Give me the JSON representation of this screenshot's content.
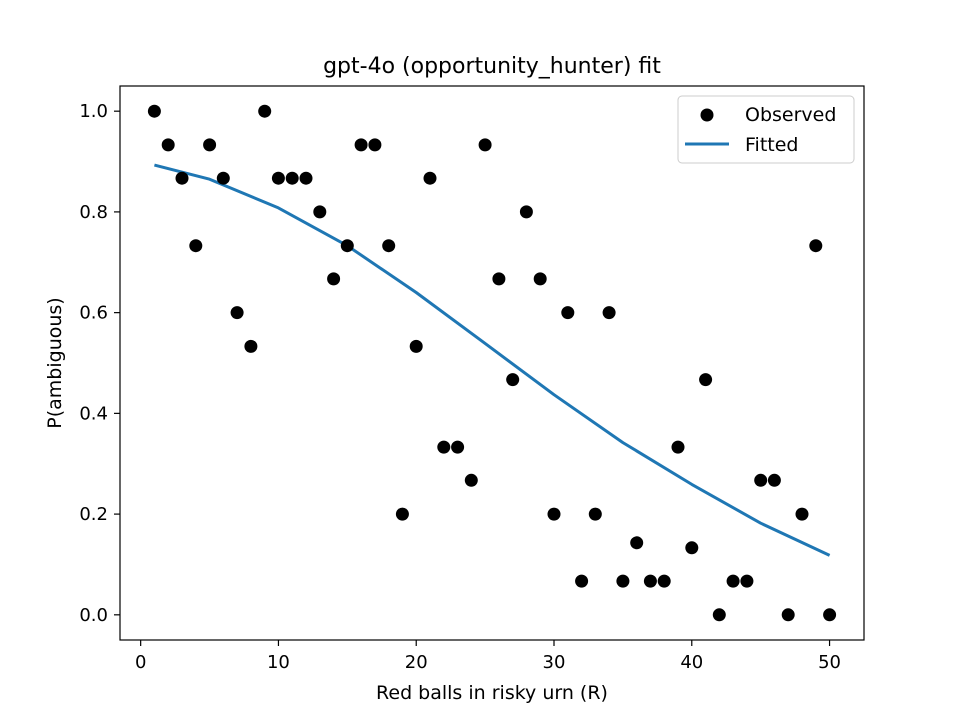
{
  "chart_data": {
    "type": "scatter",
    "title": "gpt-4o (opportunity_hunter) fit",
    "xlabel": "Red balls in risky urn (R)",
    "ylabel": "P(ambiguous)",
    "xlim": [
      -1.5,
      52.5
    ],
    "ylim": [
      -0.05,
      1.05
    ],
    "xticks": [
      0,
      10,
      20,
      30,
      40,
      50
    ],
    "yticks": [
      0.0,
      0.2,
      0.4,
      0.6,
      0.8,
      1.0
    ],
    "xtick_labels": [
      "0",
      "10",
      "20",
      "30",
      "40",
      "50"
    ],
    "ytick_labels": [
      "0.0",
      "0.2",
      "0.4",
      "0.6",
      "0.8",
      "1.0"
    ],
    "grid": false,
    "legend_position": "top-right",
    "series": [
      {
        "name": "Observed",
        "kind": "scatter",
        "color": "#000000",
        "x": [
          1,
          2,
          3,
          4,
          5,
          6,
          7,
          8,
          9,
          10,
          11,
          12,
          13,
          14,
          15,
          16,
          17,
          18,
          19,
          20,
          21,
          22,
          23,
          24,
          25,
          26,
          27,
          28,
          29,
          30,
          31,
          32,
          33,
          34,
          35,
          36,
          37,
          38,
          39,
          40,
          41,
          42,
          43,
          44,
          45,
          46,
          47,
          48,
          49,
          50
        ],
        "y": [
          1.0,
          0.933,
          0.867,
          0.733,
          0.933,
          0.867,
          0.6,
          0.533,
          1.0,
          0.867,
          0.867,
          0.867,
          0.8,
          0.667,
          0.733,
          0.933,
          0.933,
          0.733,
          0.2,
          0.533,
          0.867,
          0.333,
          0.333,
          0.267,
          0.933,
          0.667,
          0.467,
          0.8,
          0.667,
          0.2,
          0.6,
          0.067,
          0.2,
          0.6,
          0.067,
          0.143,
          0.067,
          0.067,
          0.333,
          0.133,
          0.467,
          0.0,
          0.067,
          0.067,
          0.267,
          0.267,
          0.0,
          0.2,
          0.733,
          0.0
        ]
      },
      {
        "name": "Fitted",
        "kind": "line",
        "color": "#1f77b4",
        "x": [
          1,
          5,
          10,
          15,
          20,
          25,
          30,
          35,
          40,
          45,
          50
        ],
        "y": [
          0.893,
          0.865,
          0.808,
          0.733,
          0.64,
          0.539,
          0.437,
          0.342,
          0.259,
          0.182,
          0.118
        ]
      }
    ]
  }
}
